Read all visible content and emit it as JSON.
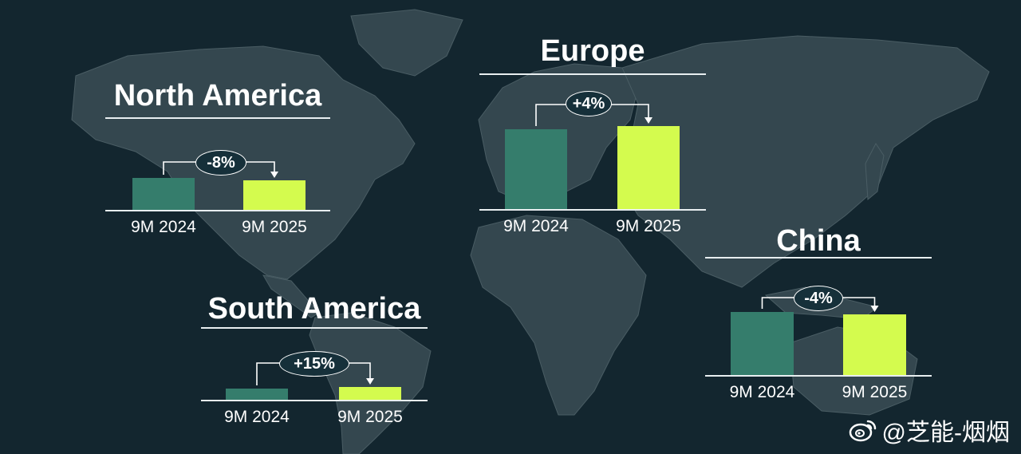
{
  "colors": {
    "background": "#13262f",
    "land": "#34474f",
    "bar_2024": "#357d6c",
    "bar_2025": "#d4fb4e",
    "text": "#ffffff"
  },
  "watermark": {
    "icon": "weibo-icon",
    "text": "@芝能-烟烟"
  },
  "chart_data": [
    {
      "type": "bar",
      "title": "North America",
      "categories": [
        "9M 2024",
        "9M 2025"
      ],
      "values": [
        1.0,
        0.92
      ],
      "change_label": "-8%",
      "colors": [
        "#357d6c",
        "#d4fb4e"
      ]
    },
    {
      "type": "bar",
      "title": "Europe",
      "categories": [
        "9M 2024",
        "9M 2025"
      ],
      "values": [
        1.0,
        1.04
      ],
      "change_label": "+4%",
      "colors": [
        "#357d6c",
        "#d4fb4e"
      ]
    },
    {
      "type": "bar",
      "title": "South America",
      "categories": [
        "9M 2024",
        "9M 2025"
      ],
      "values": [
        1.0,
        1.15
      ],
      "change_label": "+15%",
      "colors": [
        "#357d6c",
        "#d4fb4e"
      ]
    },
    {
      "type": "bar",
      "title": "China",
      "categories": [
        "9M 2024",
        "9M 2025"
      ],
      "values": [
        1.0,
        0.96
      ],
      "change_label": "-4%",
      "colors": [
        "#357d6c",
        "#d4fb4e"
      ]
    }
  ]
}
